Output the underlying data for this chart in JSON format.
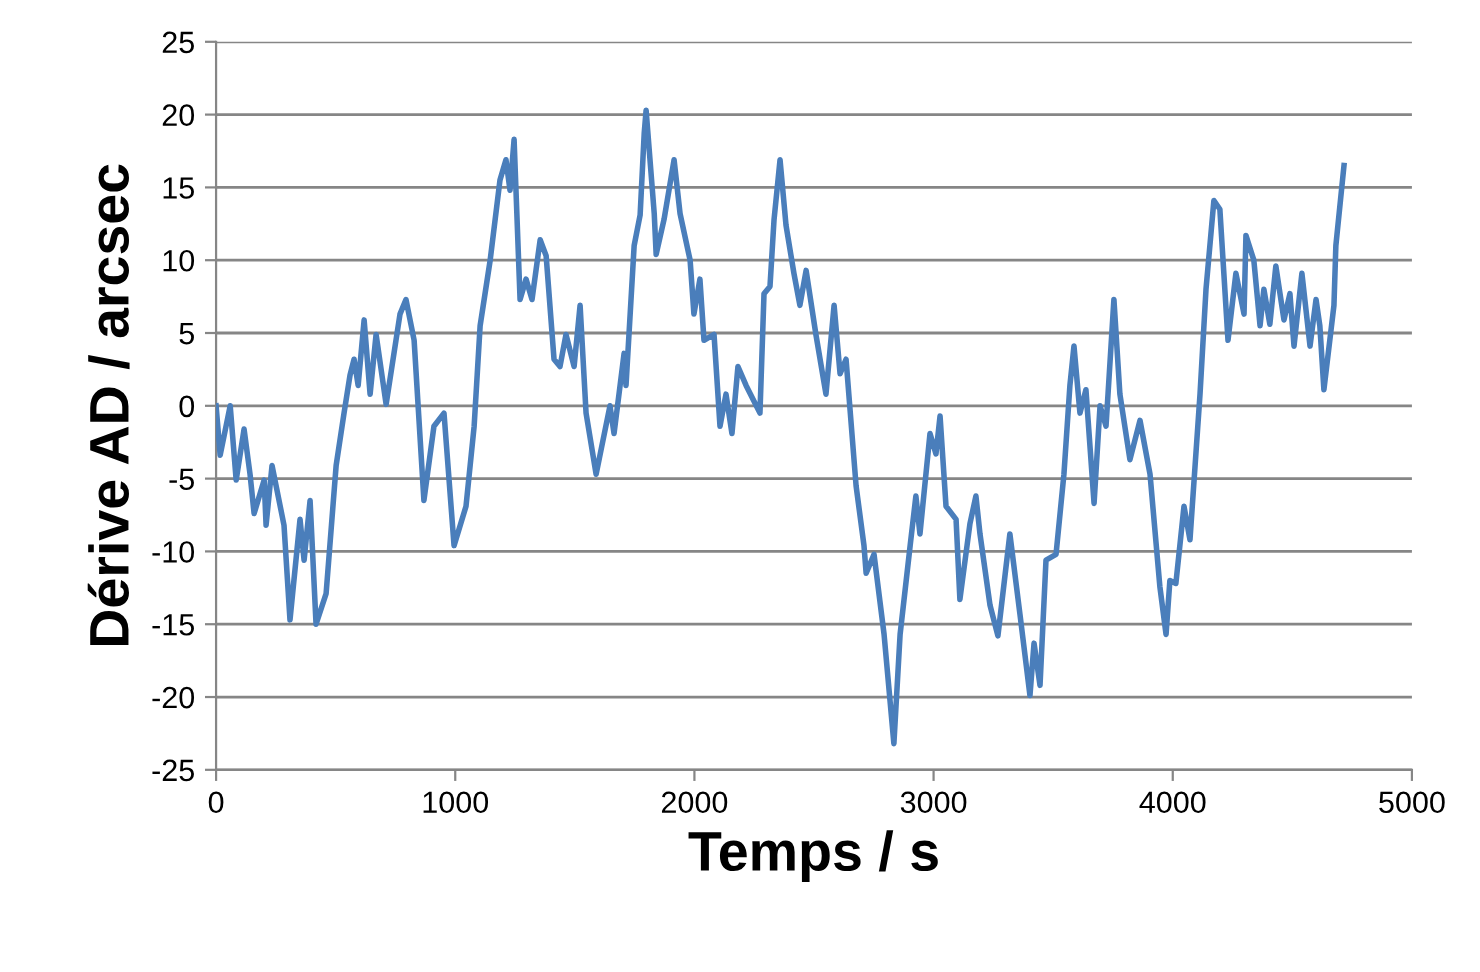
{
  "chart_data": {
    "type": "line",
    "xlabel": "Temps / s",
    "ylabel": "Dérive AD / arcsec",
    "xlim": [
      0,
      5000
    ],
    "xticks": [
      0,
      1000,
      2000,
      3000,
      4000,
      5000
    ],
    "ylim": [
      -25,
      25
    ],
    "yticks": [
      -25,
      -20,
      -15,
      -10,
      -5,
      0,
      5,
      10,
      15,
      20,
      25
    ],
    "grid": "y",
    "legend": false,
    "marker": "none",
    "line_style": "solid",
    "series": [
      {
        "color": "#4a7ebb",
        "x": [
          0,
          17,
          59,
          84,
          117,
          142,
          159,
          201,
          209,
          234,
          284,
          309,
          351,
          368,
          393,
          418,
          460,
          502,
          535,
          560,
          577,
          594,
          619,
          644,
          669,
          711,
          769,
          794,
          828,
          869,
          911,
          953,
          995,
          1045,
          1079,
          1104,
          1146,
          1187,
          1212,
          1229,
          1246,
          1271,
          1296,
          1321,
          1355,
          1380,
          1413,
          1438,
          1463,
          1497,
          1522,
          1547,
          1589,
          1647,
          1664,
          1706,
          1714,
          1748,
          1773,
          1790,
          1798,
          1832,
          1840,
          1873,
          1915,
          1940,
          1982,
          1998,
          2023,
          2040,
          2082,
          2107,
          2132,
          2157,
          2182,
          2216,
          2274,
          2291,
          2316,
          2333,
          2358,
          2383,
          2416,
          2441,
          2467,
          2508,
          2550,
          2584,
          2609,
          2634,
          2676,
          2709,
          2718,
          2751,
          2793,
          2834,
          2860,
          2902,
          2926,
          2943,
          2985,
          3010,
          3027,
          3052,
          3094,
          3110,
          3152,
          3177,
          3194,
          3236,
          3269,
          3319,
          3361,
          3403,
          3420,
          3445,
          3470,
          3512,
          3545,
          3570,
          3587,
          3612,
          3637,
          3671,
          3696,
          3721,
          3754,
          3779,
          3821,
          3863,
          3905,
          3946,
          3972,
          3988,
          4013,
          4047,
          4072,
          4114,
          4139,
          4172,
          4197,
          4231,
          4264,
          4298,
          4306,
          4339,
          4365,
          4381,
          4406,
          4431,
          4465,
          4490,
          4507,
          4540,
          4574,
          4599,
          4615,
          4632,
          4674,
          4682,
          4716
        ],
        "values": [
          0,
          -3.4,
          0,
          -5.1,
          -1.6,
          -4.7,
          -7.4,
          -5.1,
          -8.2,
          -4.1,
          -8.2,
          -14.7,
          -7.8,
          -10.6,
          -6.5,
          -15,
          -12.9,
          -4.1,
          -0.5,
          2.1,
          3.2,
          1.4,
          5.9,
          0.8,
          4.9,
          0.1,
          6.3,
          7.3,
          4.5,
          -6.5,
          -1.4,
          -0.5,
          -9.6,
          -6.9,
          -1.4,
          5.5,
          10,
          15.5,
          16.9,
          14.8,
          18.3,
          7.3,
          8.7,
          7.3,
          11.4,
          10.3,
          3.2,
          2.7,
          4.9,
          2.7,
          6.9,
          -0.5,
          -4.7,
          0,
          -1.9,
          3.6,
          1.4,
          11,
          13.1,
          18.7,
          20.3,
          13.2,
          10.4,
          12.8,
          16.9,
          13.2,
          10,
          6.3,
          8.7,
          4.5,
          4.9,
          -1.4,
          0.8,
          -1.9,
          2.7,
          1.4,
          -0.5,
          7.7,
          8.2,
          12.8,
          16.9,
          12.4,
          9.1,
          6.9,
          9.3,
          4.9,
          0.8,
          6.9,
          2.2,
          3.2,
          -5.5,
          -9.6,
          -11.5,
          -10.2,
          -15.7,
          -23.2,
          -15.7,
          -9.6,
          -6.2,
          -8.8,
          -1.9,
          -3.3,
          -0.7,
          -6.9,
          -7.8,
          -13.3,
          -8.1,
          -6.2,
          -8.8,
          -13.7,
          -15.8,
          -8.8,
          -14.3,
          -19.9,
          -16.3,
          -19.2,
          -10.6,
          -10.2,
          -4.7,
          1.4,
          4.1,
          -0.5,
          1.1,
          -6.7,
          0,
          -1.4,
          7.3,
          0.8,
          -3.7,
          -1,
          -4.7,
          -12.4,
          -15.7,
          -12,
          -12.2,
          -6.9,
          -9.2,
          0.8,
          8,
          14.1,
          13.5,
          4.5,
          9.1,
          6.3,
          11.7,
          10,
          5.5,
          8,
          5.6,
          9.6,
          5.9,
          7.7,
          4.1,
          9.1,
          4.1,
          7.3,
          5.5,
          1.1,
          6.9,
          11,
          16.5
        ]
      }
    ]
  }
}
